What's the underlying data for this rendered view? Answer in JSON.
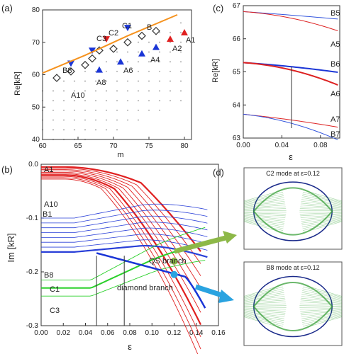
{
  "panels": {
    "a": "(a)",
    "b": "(b)",
    "c": "(c)",
    "d": "(d)"
  },
  "chart_data": [
    {
      "panel": "(a)",
      "type": "scatter",
      "xlabel": "m",
      "ylabel": "Re[kR]",
      "xlim": [
        60,
        81
      ],
      "ylim": [
        40,
        80
      ],
      "xticks": [
        "60",
        "65",
        "70",
        "75",
        "80"
      ],
      "yticks": [
        "40",
        "50",
        "60",
        "70",
        "80"
      ],
      "grid_dots": true,
      "series": [
        {
          "name": "A",
          "marker": "triangle-up",
          "color": "#1a35d6",
          "points": [
            [
              68,
              61.5
            ],
            [
              71,
              64
            ],
            [
              74,
              66.5
            ],
            [
              76,
              68.5
            ],
            [
              78,
              71
            ],
            [
              80,
              73
            ]
          ],
          "labels": [
            "A6",
            "A4",
            "A2",
            "A1"
          ]
        },
        {
          "name": "B",
          "marker": "triangle-down",
          "color": "#1a35d6",
          "points": [
            [
              64,
              63.5
            ],
            [
              67,
              67.5
            ],
            [
              69,
              71
            ],
            [
              72,
              74.5
            ]
          ],
          "labels": [
            "B8",
            "C2",
            "C1"
          ]
        },
        {
          "name": "C",
          "marker": "diamond",
          "color": "#333333",
          "points": [
            [
              62,
              59
            ],
            [
              64,
              61
            ],
            [
              66,
              63
            ],
            [
              67,
              65
            ],
            [
              68,
              67.5
            ],
            [
              70,
              68
            ],
            [
              72,
              70
            ],
            [
              74,
              72
            ],
            [
              76,
              73.5
            ]
          ],
          "labels": [
            "A10",
            "A8",
            "B"
          ]
        },
        {
          "name": "fit",
          "type": "line",
          "color": "#f5921e",
          "points": [
            [
              60,
              60.5
            ],
            [
              66,
              66
            ],
            [
              72,
              72
            ],
            [
              79,
              78.5
            ]
          ]
        }
      ],
      "annotations": [
        "A1",
        "A2",
        "A4",
        "A6",
        "A8",
        "A10",
        "B",
        "B8",
        "C1",
        "C2",
        "C3"
      ]
    },
    {
      "panel": "(c)",
      "type": "line",
      "xlabel": "ε",
      "ylabel": "Re[kR]",
      "xlim": [
        0,
        0.1
      ],
      "ylim": [
        63,
        67
      ],
      "xticks": [
        "0.00",
        "0.04",
        "0.08"
      ],
      "yticks": [
        "63",
        "64",
        "65",
        "66",
        "67"
      ],
      "series_labels": [
        "B5",
        "A5",
        "B6",
        "A6",
        "A7",
        "B7"
      ],
      "marker_x": 0.05
    },
    {
      "panel": "(b)",
      "type": "line",
      "xlabel": "ε",
      "ylabel": "Im [kR]",
      "xlim": [
        0,
        0.16
      ],
      "ylim": [
        -0.3,
        0
      ],
      "xticks": [
        "0.00",
        "0.02",
        "0.04",
        "0.06",
        "0.08",
        "0.10",
        "0.12",
        "0.14",
        "0.16"
      ],
      "yticks": [
        "0.0",
        "-0.1",
        "-0.2",
        "-0.3"
      ],
      "series_labels": [
        "A1",
        "A10",
        "B1",
        "B8",
        "C1",
        "C3"
      ],
      "branch_labels": [
        "QS branch",
        "diamond branch"
      ],
      "markers": [
        [
          0.12,
          -0.18
        ],
        [
          0.12,
          -0.205
        ]
      ],
      "marker_x": [
        0.05,
        0.075
      ]
    }
  ],
  "panel_d": {
    "top_title": "C2 mode at ε=0.12",
    "bottom_title": "B8 mode at ε=0.12"
  }
}
